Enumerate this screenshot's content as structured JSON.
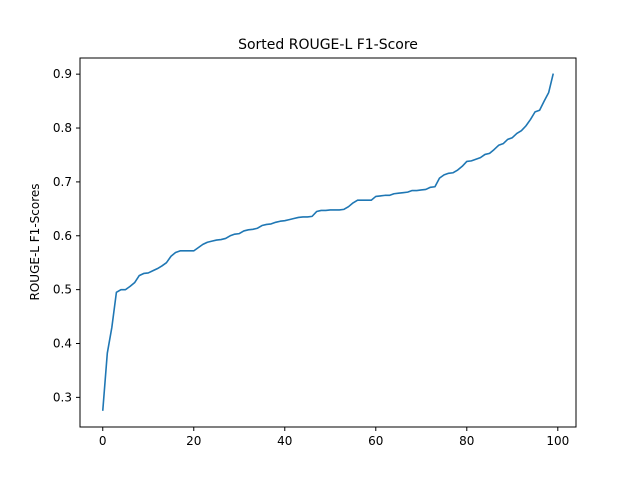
{
  "chart_data": {
    "type": "line",
    "title": "Sorted ROUGE-L F1-Score",
    "xlabel": "",
    "ylabel": "ROUGE-L F1-Scores",
    "xlim": [
      -5,
      104
    ],
    "ylim": [
      0.245,
      0.93
    ],
    "x_ticks": [
      0,
      20,
      40,
      60,
      80,
      100
    ],
    "y_ticks": [
      0.3,
      0.4,
      0.5,
      0.6,
      0.7,
      0.8,
      0.9
    ],
    "grid": false,
    "series_color": "#1f77b4",
    "series": [
      {
        "x": [
          0,
          1,
          2,
          3,
          4,
          5,
          6,
          7,
          8,
          9,
          10,
          11,
          12,
          13,
          14,
          15,
          16,
          17,
          18,
          19,
          20,
          21,
          22,
          23,
          24,
          25,
          26,
          27,
          28,
          29,
          30,
          31,
          32,
          33,
          34,
          35,
          36,
          37,
          38,
          39,
          40,
          41,
          42,
          43,
          44,
          45,
          46,
          47,
          48,
          49,
          50,
          51,
          52,
          53,
          54,
          55,
          56,
          57,
          58,
          59,
          60,
          61,
          62,
          63,
          64,
          65,
          66,
          67,
          68,
          69,
          70,
          71,
          72,
          73,
          74,
          75,
          76,
          77,
          78,
          79,
          80,
          81,
          82,
          83,
          84,
          85,
          86,
          87,
          88,
          89,
          90,
          91,
          92,
          93,
          94,
          95,
          96,
          97,
          98,
          99
        ],
        "y": [
          0.275,
          0.382,
          0.43,
          0.495,
          0.5,
          0.5,
          0.506,
          0.513,
          0.526,
          0.53,
          0.531,
          0.535,
          0.539,
          0.544,
          0.55,
          0.562,
          0.569,
          0.572,
          0.572,
          0.572,
          0.572,
          0.578,
          0.584,
          0.588,
          0.59,
          0.592,
          0.593,
          0.595,
          0.6,
          0.603,
          0.604,
          0.609,
          0.611,
          0.612,
          0.614,
          0.619,
          0.621,
          0.622,
          0.625,
          0.627,
          0.628,
          0.63,
          0.632,
          0.634,
          0.635,
          0.635,
          0.636,
          0.645,
          0.647,
          0.647,
          0.648,
          0.648,
          0.648,
          0.649,
          0.654,
          0.661,
          0.666,
          0.666,
          0.666,
          0.666,
          0.673,
          0.674,
          0.675,
          0.675,
          0.678,
          0.679,
          0.68,
          0.681,
          0.684,
          0.684,
          0.685,
          0.686,
          0.69,
          0.691,
          0.707,
          0.713,
          0.716,
          0.717,
          0.722,
          0.729,
          0.738,
          0.739,
          0.742,
          0.745,
          0.751,
          0.753,
          0.76,
          0.768,
          0.771,
          0.779,
          0.782,
          0.79,
          0.795,
          0.804,
          0.816,
          0.83,
          0.833,
          0.85,
          0.866,
          0.901
        ]
      }
    ]
  }
}
